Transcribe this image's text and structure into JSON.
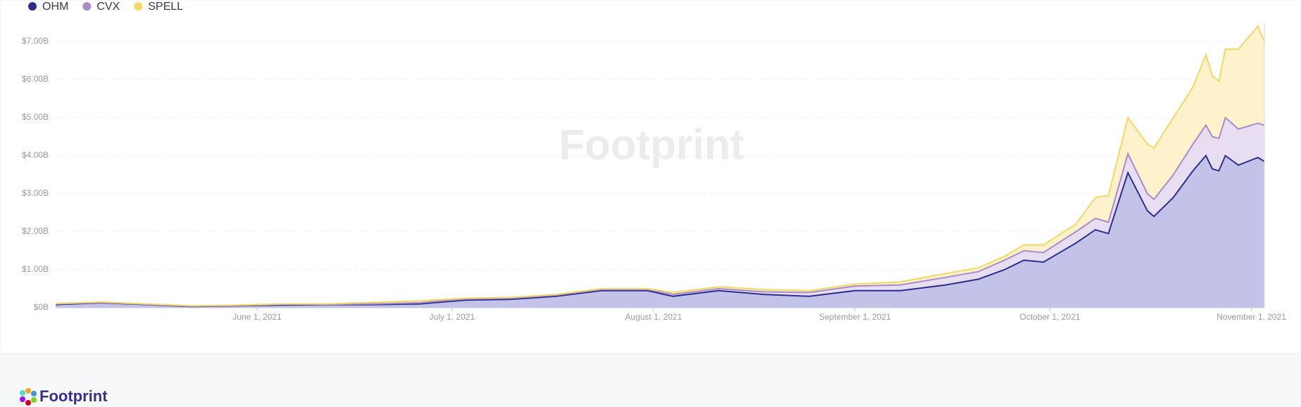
{
  "chart_data": {
    "type": "stacked-area",
    "watermark": "Footprint",
    "x": [
      "2021-05-01",
      "2021-05-08",
      "2021-05-15",
      "2021-05-22",
      "2021-05-29",
      "2021-06-05",
      "2021-06-12",
      "2021-06-19",
      "2021-06-26",
      "2021-07-03",
      "2021-07-10",
      "2021-07-17",
      "2021-07-24",
      "2021-07-31",
      "2021-08-04",
      "2021-08-11",
      "2021-08-18",
      "2021-08-25",
      "2021-09-01",
      "2021-09-08",
      "2021-09-15",
      "2021-09-20",
      "2021-09-24",
      "2021-09-27",
      "2021-09-30",
      "2021-10-05",
      "2021-10-08",
      "2021-10-10",
      "2021-10-13",
      "2021-10-16",
      "2021-10-17",
      "2021-10-20",
      "2021-10-23",
      "2021-10-25",
      "2021-10-26",
      "2021-10-27",
      "2021-10-28",
      "2021-10-30",
      "2021-11-02",
      "2021-11-03"
    ],
    "series": [
      {
        "name": "OHM",
        "color": "#2b2e8f",
        "fill": "#c3c3ea",
        "values": [
          0.08,
          0.13,
          0.08,
          0.03,
          0.05,
          0.07,
          0.08,
          0.08,
          0.1,
          0.2,
          0.22,
          0.3,
          0.45,
          0.45,
          0.3,
          0.45,
          0.35,
          0.3,
          0.45,
          0.45,
          0.6,
          0.75,
          1.0,
          1.25,
          1.2,
          1.7,
          2.05,
          1.95,
          3.55,
          2.55,
          2.4,
          2.9,
          3.6,
          4.0,
          3.65,
          3.6,
          4.0,
          3.75,
          3.95,
          3.85
        ]
      },
      {
        "name": "CVX",
        "color": "#a98bcc",
        "fill": "#e8def2",
        "values": [
          0.02,
          0.01,
          0.01,
          0.01,
          0.01,
          0.02,
          0.01,
          0.02,
          0.03,
          0.03,
          0.03,
          0.03,
          0.03,
          0.03,
          0.05,
          0.05,
          0.07,
          0.1,
          0.12,
          0.15,
          0.2,
          0.2,
          0.25,
          0.25,
          0.25,
          0.3,
          0.3,
          0.3,
          0.5,
          0.45,
          0.45,
          0.6,
          0.7,
          0.8,
          0.85,
          0.85,
          1.0,
          0.95,
          0.9,
          0.95
        ]
      },
      {
        "name": "SPELL",
        "color": "#f2d865",
        "fill": "#fdf2cc",
        "values": [
          0.01,
          0.01,
          0.01,
          0.01,
          0.01,
          0.01,
          0.01,
          0.04,
          0.05,
          0.02,
          0.02,
          0.02,
          0.02,
          0.02,
          0.05,
          0.05,
          0.06,
          0.05,
          0.05,
          0.08,
          0.1,
          0.1,
          0.1,
          0.15,
          0.2,
          0.2,
          0.55,
          0.7,
          0.95,
          1.3,
          1.35,
          1.5,
          1.5,
          1.85,
          1.6,
          1.5,
          1.8,
          2.1,
          2.55,
          2.2
        ]
      }
    ],
    "xlim": [
      "2021-05-01",
      "2021-11-03"
    ],
    "xticks": [
      {
        "value": "2021-06-01",
        "label": "June 1, 2021"
      },
      {
        "value": "2021-07-01",
        "label": "July 1, 2021"
      },
      {
        "value": "2021-08-01",
        "label": "August 1, 2021"
      },
      {
        "value": "2021-09-01",
        "label": "September 1, 2021"
      },
      {
        "value": "2021-10-01",
        "label": "October 1, 2021"
      },
      {
        "value": "2021-11-01",
        "label": "November 1, 2021"
      }
    ],
    "ylim": [
      0,
      7.5
    ],
    "yticks": [
      {
        "value": 0,
        "label": "$0B"
      },
      {
        "value": 1,
        "label": "$1.00B"
      },
      {
        "value": 2,
        "label": "$2.00B"
      },
      {
        "value": 3,
        "label": "$3.00B"
      },
      {
        "value": 4,
        "label": "$4.00B"
      },
      {
        "value": 5,
        "label": "$5.00B"
      },
      {
        "value": 6,
        "label": "$6.00B"
      },
      {
        "value": 7,
        "label": "$7.00B"
      }
    ],
    "grid": true,
    "legend": "top-left"
  },
  "footer": {
    "brand": "Footprint"
  }
}
